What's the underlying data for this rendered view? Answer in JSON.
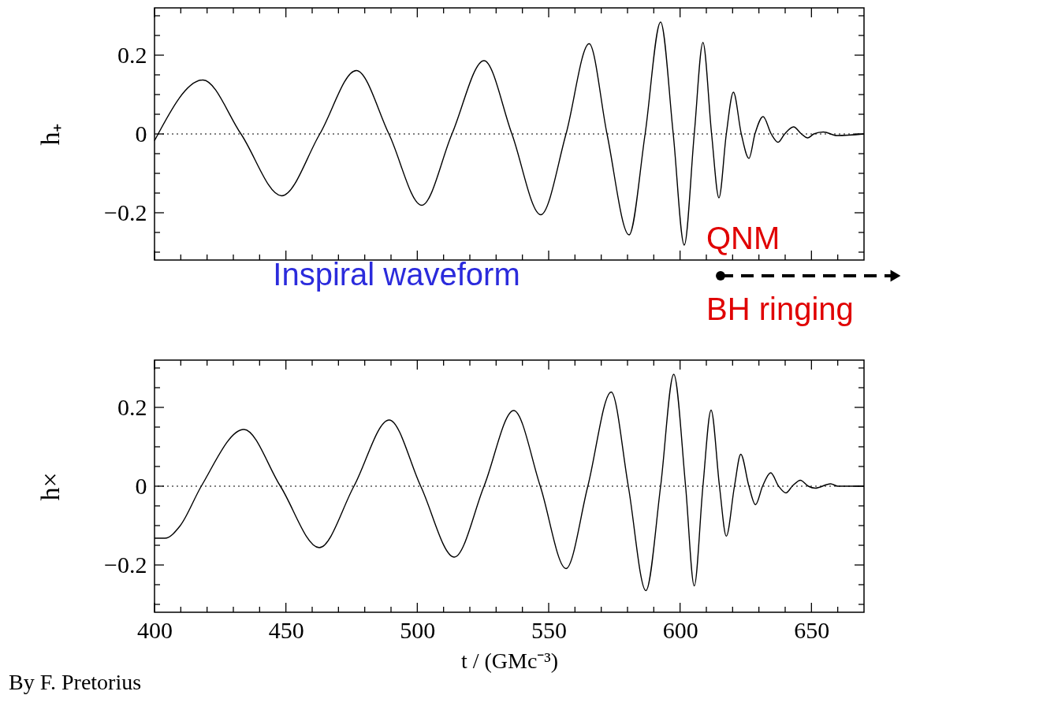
{
  "chart_data": [
    {
      "type": "line",
      "x": [
        400,
        418.4,
        432.9,
        448.4,
        462.9,
        476.8,
        489.2,
        501.7,
        513.2,
        525.4,
        536,
        547,
        556.6,
        565.4,
        572.2,
        580.6,
        586.7,
        592.6,
        597.4,
        601.6,
        605.4,
        608.7,
        612,
        614.8,
        617.6,
        620.3,
        623.3,
        626.2,
        628.5,
        631.6,
        634.7,
        637.3,
        639.8,
        643.2,
        646.2,
        648.6,
        650.9,
        654.5,
        659.7,
        670
      ],
      "series": [
        {
          "color": "#000000",
          "values": [
            -0.017,
            0.137,
            0,
            -0.157,
            0,
            0.161,
            0,
            -0.181,
            0,
            0.186,
            0,
            -0.205,
            0,
            0.229,
            0,
            -0.256,
            0,
            0.284,
            0,
            -0.282,
            0,
            0.232,
            0,
            -0.162,
            0,
            0.106,
            0,
            -0.062,
            0,
            0.044,
            0,
            -0.021,
            0,
            0.018,
            0,
            -0.01,
            0,
            0.005,
            -0.004,
            0
          ]
        }
      ],
      "ylabel": "h₊",
      "xlim": [
        400,
        670
      ],
      "xticks": [
        400,
        {
          "value": 410,
          "label": null
        },
        {
          "value": 420,
          "label": null
        },
        {
          "value": 430,
          "label": null
        },
        {
          "value": 440,
          "label": null
        },
        450,
        {
          "value": 460,
          "label": null
        },
        {
          "value": 470,
          "label": null
        },
        {
          "value": 480,
          "label": null
        },
        {
          "value": 490,
          "label": null
        },
        500,
        {
          "value": 510,
          "label": null
        },
        {
          "value": 520,
          "label": null
        },
        {
          "value": 530,
          "label": null
        },
        {
          "value": 540,
          "label": null
        },
        550,
        {
          "value": 560,
          "label": null
        },
        {
          "value": 570,
          "label": null
        },
        {
          "value": 580,
          "label": null
        },
        {
          "value": 590,
          "label": null
        },
        600,
        {
          "value": 610,
          "label": null
        },
        {
          "value": 620,
          "label": null
        },
        {
          "value": 630,
          "label": null
        },
        {
          "value": 640,
          "label": null
        },
        650,
        {
          "value": 660,
          "label": null
        }
      ],
      "ylim": [
        -0.32,
        0.32
      ],
      "yticks": [
        {
          "value": -0.3,
          "label": null
        },
        {
          "value": -0.25,
          "label": null
        },
        {
          "value": -0.2,
          "label": "−0.2"
        },
        {
          "value": -0.15,
          "label": null
        },
        {
          "value": -0.1,
          "label": null
        },
        {
          "value": -0.05,
          "label": null
        },
        0,
        {
          "value": 0.05,
          "label": null
        },
        {
          "value": 0.1,
          "label": null
        },
        {
          "value": 0.15,
          "label": null
        },
        0.2,
        {
          "value": 0.25,
          "label": null
        },
        {
          "value": 0.3,
          "label": null
        }
      ],
      "tick_labels": "y",
      "line_style": "solid",
      "ref_lines": [
        {
          "axis": "y",
          "value": 0,
          "color": "#000000",
          "line_style": "dotted"
        }
      ],
      "annotations": [
        "Inspiral  waveform",
        "QNM",
        "BH  ringing"
      ]
    },
    {
      "type": "line",
      "x": [
        400,
        404,
        409.7,
        417.8,
        434,
        447.9,
        462.7,
        475.9,
        489.3,
        501.3,
        514.1,
        525.4,
        536.7,
        546.8,
        556.6,
        564.9,
        573.8,
        580.3,
        587,
        592.6,
        597.6,
        602.1,
        605.4,
        608.7,
        611.8,
        615,
        617.6,
        620.7,
        623.1,
        626.2,
        628.7,
        631.4,
        634.5,
        637.5,
        640.3,
        642.7,
        645.8,
        648.8,
        651.4,
        657.3,
        660,
        670
      ],
      "series": [
        {
          "color": "#000000",
          "values": [
            -0.132,
            -0.132,
            -0.101,
            0,
            0.144,
            0,
            -0.156,
            0,
            0.168,
            0,
            -0.18,
            0,
            0.192,
            0,
            -0.209,
            0,
            0.239,
            0,
            -0.265,
            0,
            0.284,
            0,
            -0.253,
            0,
            0.193,
            0,
            -0.127,
            0,
            0.081,
            0,
            -0.047,
            0,
            0.034,
            0,
            -0.017,
            0,
            0.015,
            0,
            -0.005,
            0.006,
            0,
            0
          ]
        }
      ],
      "xlabel": "t  /  (GMc⁻³)",
      "ylabel": "h×",
      "xlim": [
        400,
        670
      ],
      "xticks": [
        400,
        {
          "value": 410,
          "label": null
        },
        {
          "value": 420,
          "label": null
        },
        {
          "value": 430,
          "label": null
        },
        {
          "value": 440,
          "label": null
        },
        450,
        {
          "value": 460,
          "label": null
        },
        {
          "value": 470,
          "label": null
        },
        {
          "value": 480,
          "label": null
        },
        {
          "value": 490,
          "label": null
        },
        500,
        {
          "value": 510,
          "label": null
        },
        {
          "value": 520,
          "label": null
        },
        {
          "value": 530,
          "label": null
        },
        {
          "value": 540,
          "label": null
        },
        550,
        {
          "value": 560,
          "label": null
        },
        {
          "value": 570,
          "label": null
        },
        {
          "value": 580,
          "label": null
        },
        {
          "value": 590,
          "label": null
        },
        600,
        {
          "value": 610,
          "label": null
        },
        {
          "value": 620,
          "label": null
        },
        {
          "value": 630,
          "label": null
        },
        {
          "value": 640,
          "label": null
        },
        650,
        {
          "value": 660,
          "label": null
        }
      ],
      "ylim": [
        -0.32,
        0.32
      ],
      "yticks": [
        {
          "value": -0.3,
          "label": null
        },
        {
          "value": -0.25,
          "label": null
        },
        {
          "value": -0.2,
          "label": "−0.2"
        },
        {
          "value": -0.15,
          "label": null
        },
        {
          "value": -0.1,
          "label": null
        },
        {
          "value": -0.05,
          "label": null
        },
        0,
        {
          "value": 0.05,
          "label": null
        },
        {
          "value": 0.1,
          "label": null
        },
        {
          "value": 0.15,
          "label": null
        },
        0.2,
        {
          "value": 0.25,
          "label": null
        },
        {
          "value": 0.3,
          "label": null
        }
      ],
      "line_style": "solid",
      "ref_lines": [
        {
          "axis": "y",
          "value": 0,
          "color": "#000000",
          "line_style": "dotted"
        }
      ],
      "annotations": [
        "By  F. Pretorius"
      ]
    }
  ]
}
